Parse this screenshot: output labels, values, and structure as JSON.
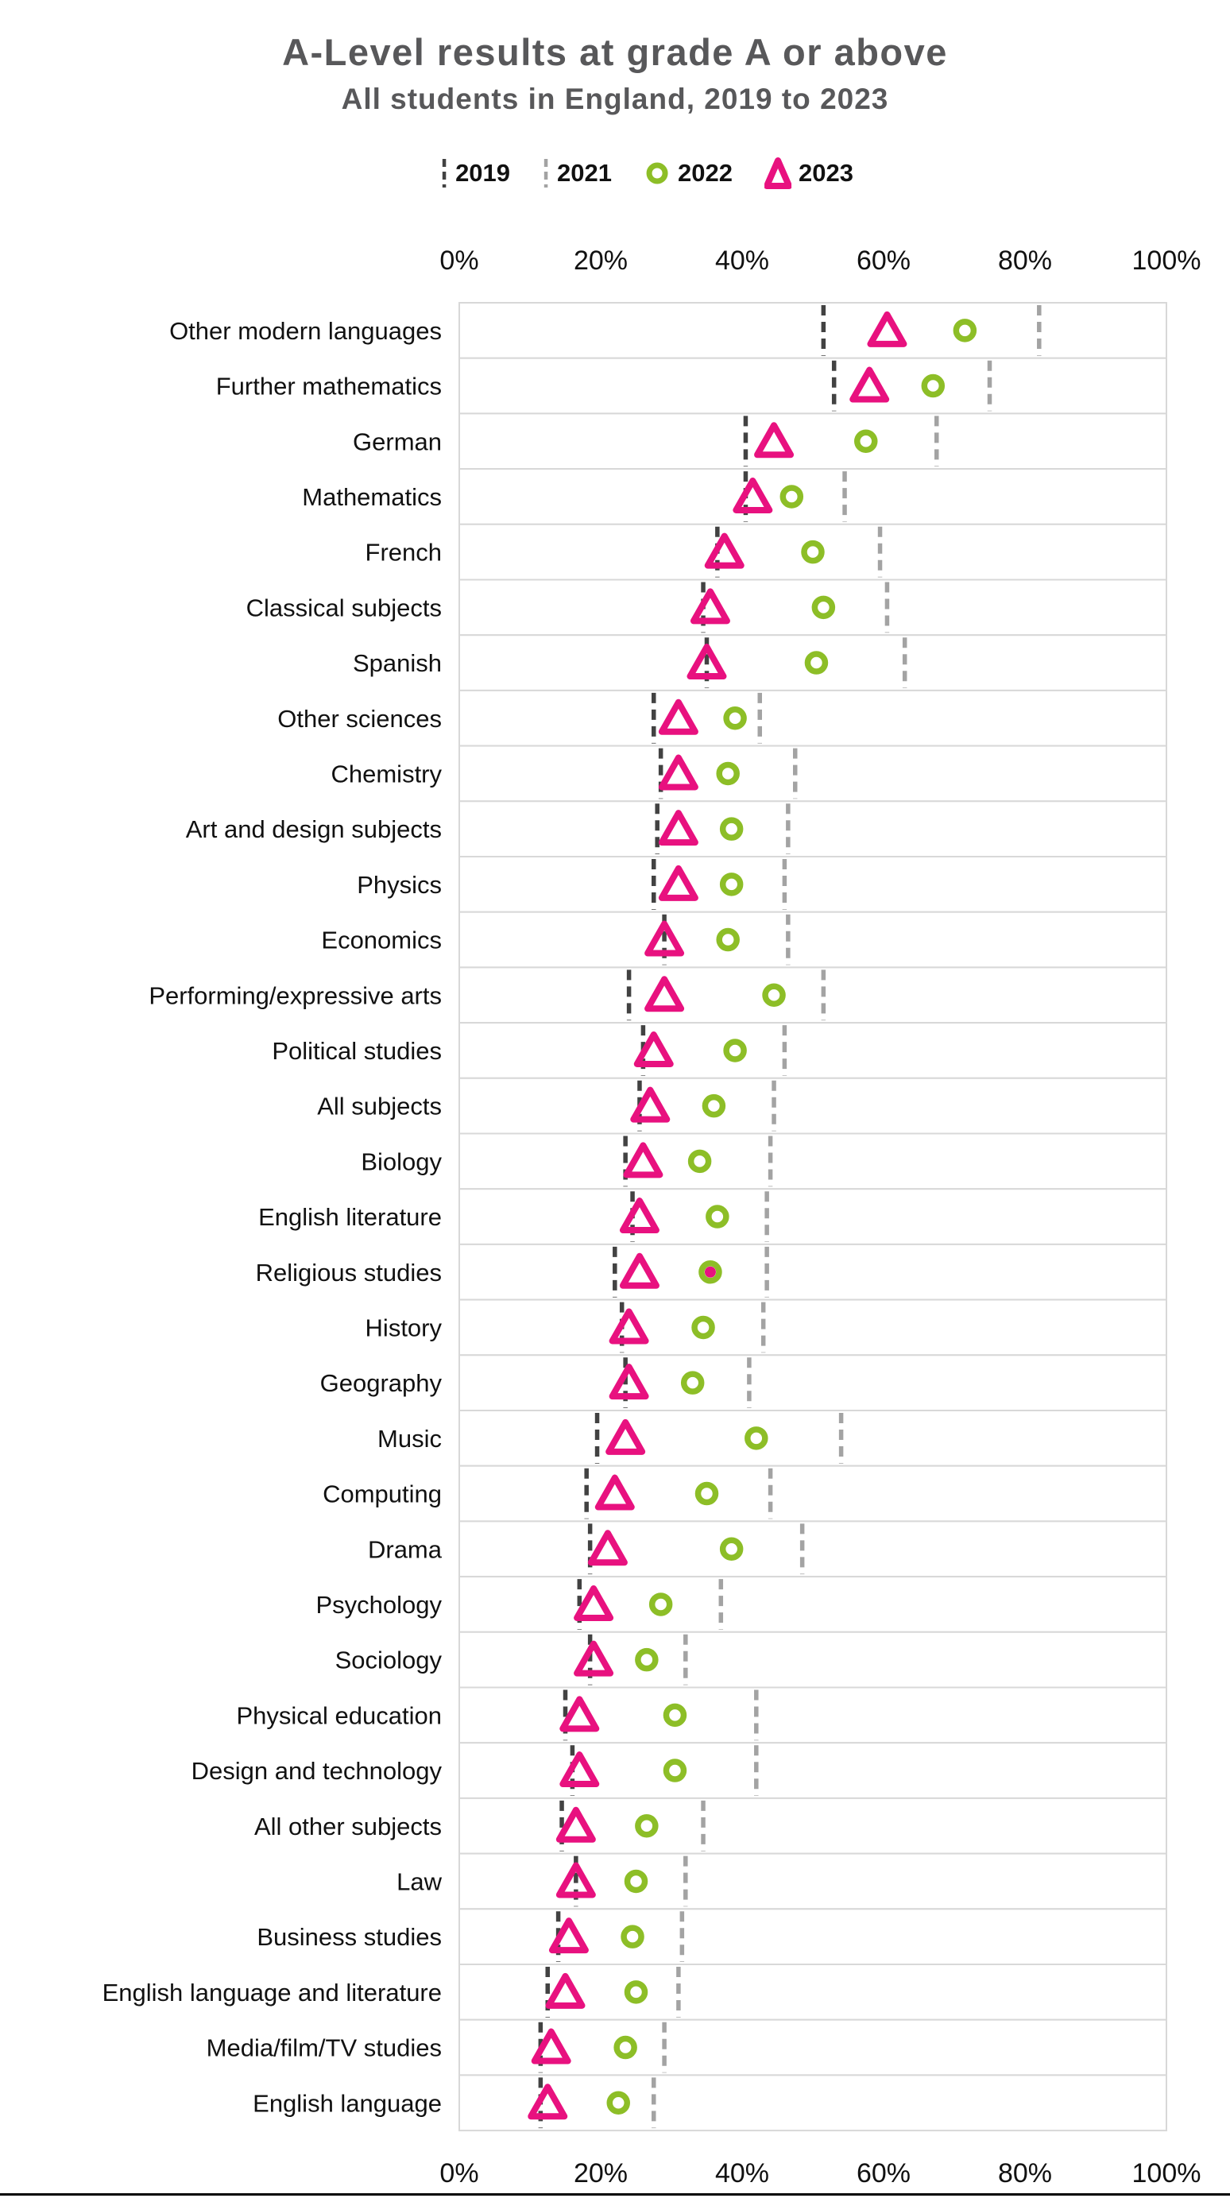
{
  "title": "A-Level results at grade A or above",
  "subtitle": "All students in England, 2019 to 2023",
  "legend": {
    "items": [
      {
        "label": "2019",
        "marker": "dash-dark"
      },
      {
        "label": "2021",
        "marker": "dash-light"
      },
      {
        "label": "2022",
        "marker": "circle-outline"
      },
      {
        "label": "2023",
        "marker": "triangle-outline"
      }
    ]
  },
  "colors": {
    "title_gray": "#58585A",
    "text_black": "#111111",
    "row_border": "#D8D8D8",
    "dash_2019": "#424242",
    "dash_2021": "#A3A3A3",
    "green_2022": "#8DBE27",
    "pink_2023": "#E8117F"
  },
  "chart_data": {
    "type": "scatter",
    "title": "A-Level results at grade A or above",
    "subtitle": "All students in England, 2019 to 2023",
    "orientation": "horizontal-dot-plot",
    "legend_position": "top",
    "grid": "row-cells-light-gray",
    "x_axis": {
      "min": 0,
      "max": 100,
      "tick_values": [
        0,
        20,
        40,
        60,
        80,
        100
      ],
      "tick_labels": [
        "0%",
        "20%",
        "40%",
        "60%",
        "80%",
        "100%"
      ],
      "shown": "top-and-bottom"
    },
    "categories": [
      "Other modern languages",
      "Further mathematics",
      "German",
      "Mathematics",
      "French",
      "Classical subjects",
      "Spanish",
      "Other sciences",
      "Chemistry",
      "Art and design subjects",
      "Physics",
      "Economics",
      "Performing/expressive arts",
      "Political studies",
      "All subjects",
      "Biology",
      "English literature",
      "Religious studies",
      "History",
      "Geography",
      "Music",
      "Computing",
      "Drama",
      "Psychology",
      "Sociology",
      "Physical education",
      "Design and technology",
      "All other subjects",
      "Law",
      "Business studies",
      "English language and literature",
      "Media/film/TV studies",
      "English language"
    ],
    "series": [
      {
        "name": "2019",
        "marker": "dash-dark",
        "values": [
          51.5,
          53,
          40.5,
          40.5,
          36.5,
          34.5,
          35,
          27.5,
          28.5,
          28,
          27.5,
          29,
          24,
          26,
          25.5,
          23.5,
          24.5,
          22,
          23,
          23.5,
          19.5,
          18,
          18.5,
          17,
          18.5,
          15,
          16,
          14.5,
          16.5,
          14,
          12.5,
          11.5,
          11.5
        ]
      },
      {
        "name": "2021",
        "marker": "dash-light",
        "values": [
          82,
          75,
          67.5,
          54.5,
          59.5,
          60.5,
          63,
          42.5,
          47.5,
          46.5,
          46,
          46.5,
          51.5,
          46,
          44.5,
          44,
          43.5,
          43.5,
          43,
          41,
          54,
          44,
          48.5,
          37,
          32,
          42,
          42,
          34.5,
          32,
          31.5,
          31,
          29,
          27.5
        ]
      },
      {
        "name": "2022",
        "marker": "circle-outline",
        "values": [
          71.5,
          67,
          57.5,
          47,
          50,
          51.5,
          50.5,
          39,
          38,
          38.5,
          38.5,
          38,
          44.5,
          39,
          36,
          34,
          36.5,
          35.5,
          34.5,
          33,
          42,
          35,
          38.5,
          28.5,
          26.5,
          30.5,
          30.5,
          26.5,
          25,
          24.5,
          25,
          23.5,
          22.5
        ]
      },
      {
        "name": "2023",
        "marker": "triangle-outline",
        "values": [
          60.5,
          58,
          44.5,
          41.5,
          37.5,
          35.5,
          35,
          31,
          31,
          31,
          31,
          29,
          29,
          27.5,
          27,
          26,
          25.5,
          25.5,
          24,
          24,
          23.5,
          22,
          21,
          19,
          19,
          17,
          17,
          16.5,
          16.5,
          15.5,
          15,
          13,
          12.5
        ]
      }
    ],
    "annotations": [
      {
        "category": "Religious studies",
        "note": "2022 circle marker contains a solid pink centre dot",
        "x": 35.5
      }
    ]
  }
}
